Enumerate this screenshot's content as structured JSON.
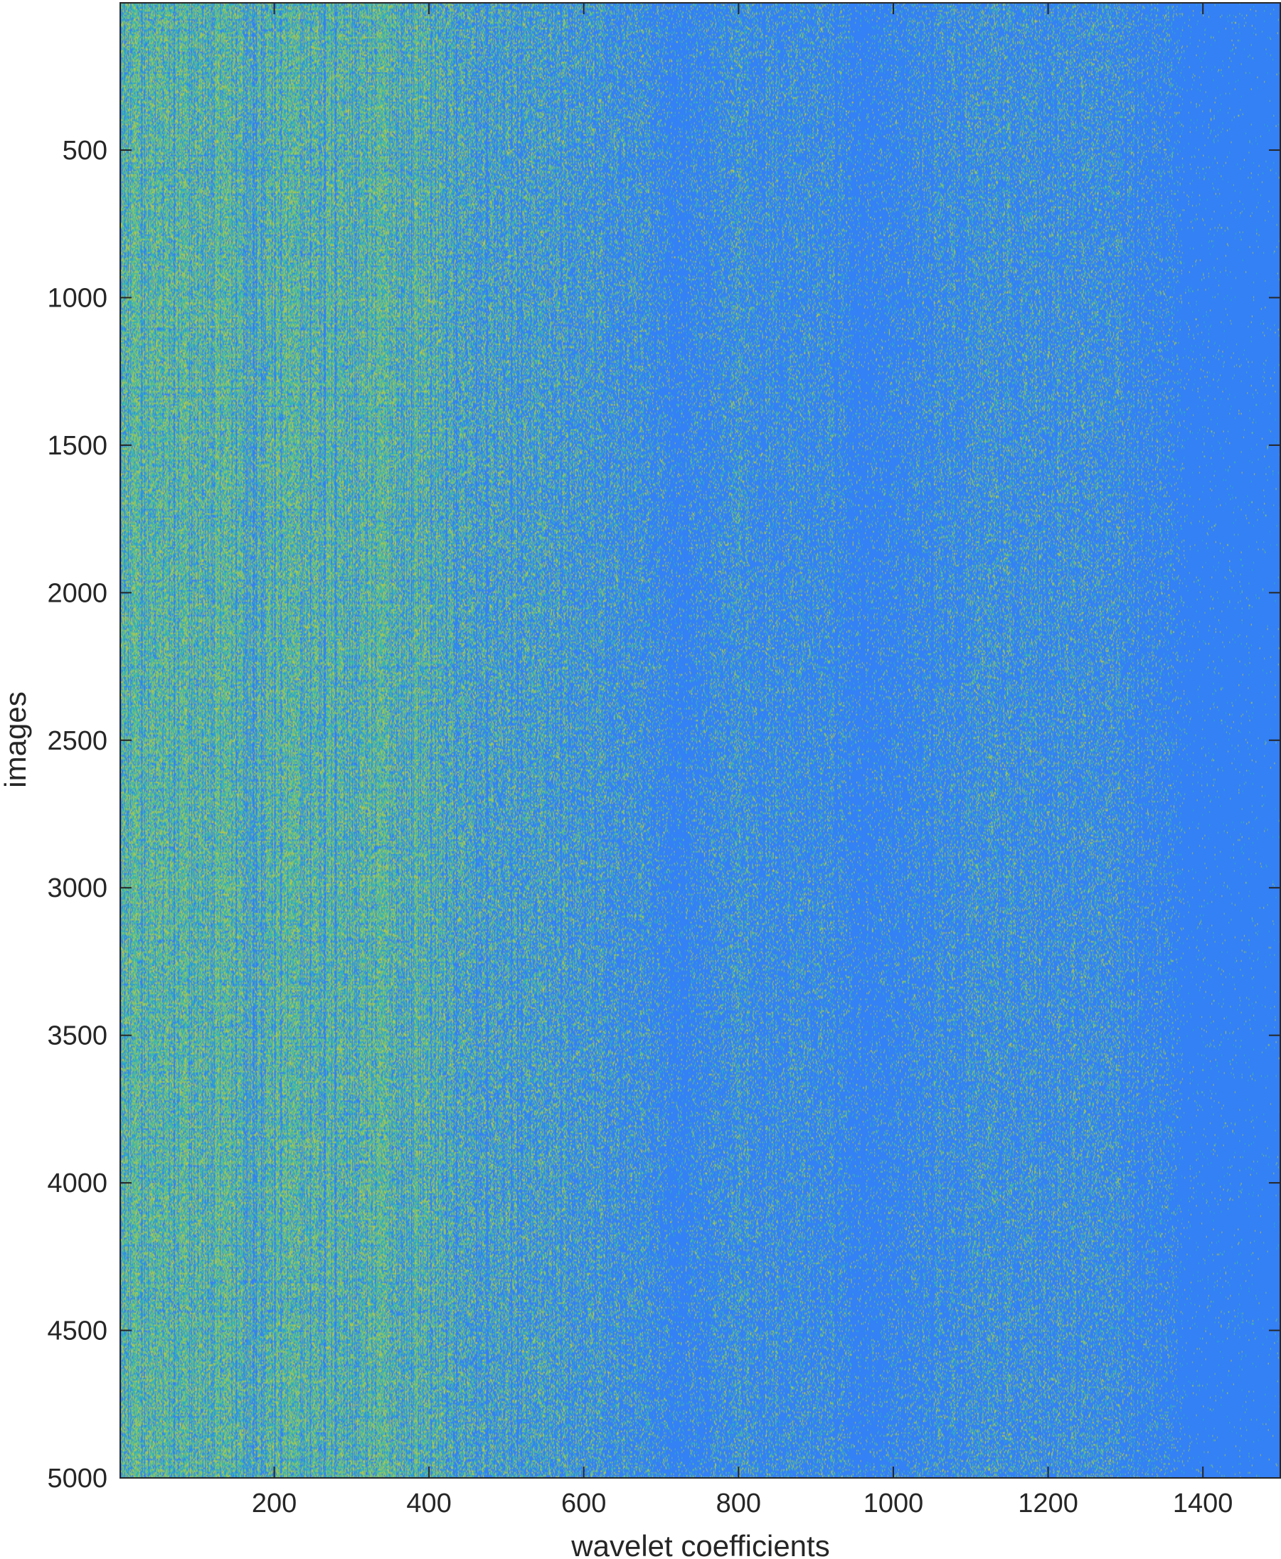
{
  "chart_data": {
    "type": "heatmap",
    "title": "",
    "xlabel": "wavelet coefficients",
    "ylabel": "images",
    "xlim": [
      1,
      1500
    ],
    "ylim": [
      1,
      5000
    ],
    "y_reversed": true,
    "x_ticks": [
      200,
      400,
      600,
      800,
      1000,
      1200,
      1400
    ],
    "x_tick_labels": [
      "200",
      "400",
      "600",
      "800",
      "1000",
      "1200",
      "1400"
    ],
    "y_ticks": [
      500,
      1000,
      1500,
      2000,
      2500,
      3000,
      3500,
      4000,
      4500,
      5000
    ],
    "y_tick_labels": [
      "500",
      "1000",
      "1500",
      "2000",
      "2500",
      "3000",
      "3500",
      "4000",
      "4500",
      "5000"
    ],
    "colormap": "parula",
    "colors": {
      "low": "#3480f5",
      "mid": "#2bb7b8",
      "high": "#c8c93a",
      "axis": "#262626"
    },
    "column_density_profile": [
      {
        "x": 1,
        "level": 0.82
      },
      {
        "x": 390,
        "level": 0.8
      },
      {
        "x": 440,
        "level": 0.55
      },
      {
        "x": 560,
        "level": 0.45
      },
      {
        "x": 680,
        "level": 0.28
      },
      {
        "x": 720,
        "level": 0.12
      },
      {
        "x": 800,
        "level": 0.3
      },
      {
        "x": 930,
        "level": 0.22
      },
      {
        "x": 960,
        "level": 0.1
      },
      {
        "x": 1100,
        "level": 0.32
      },
      {
        "x": 1250,
        "level": 0.3
      },
      {
        "x": 1340,
        "level": 0.18
      },
      {
        "x": 1380,
        "level": 0.03
      },
      {
        "x": 1500,
        "level": 0.01
      }
    ]
  }
}
